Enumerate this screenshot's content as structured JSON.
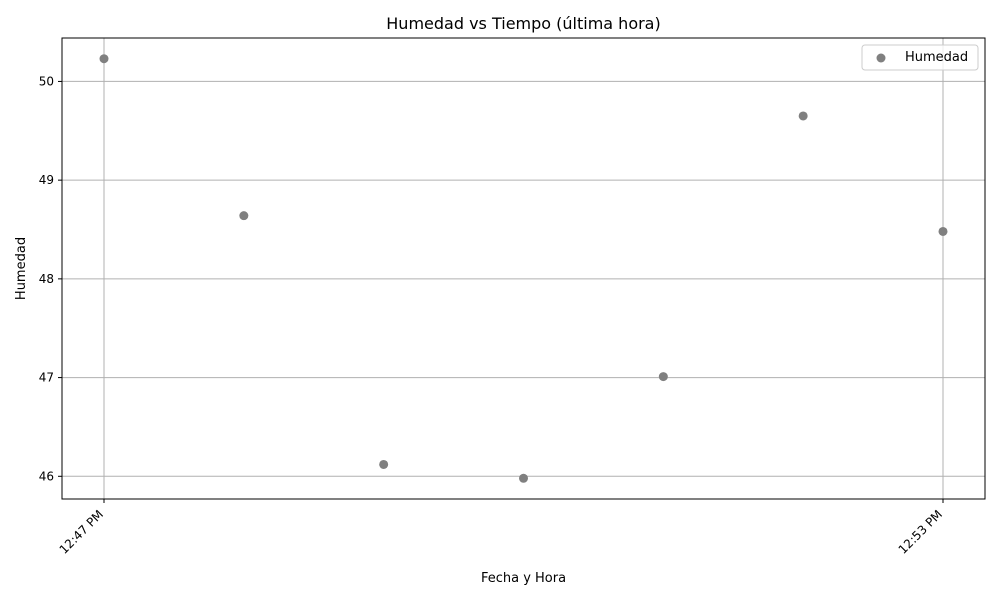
{
  "chart_data": {
    "type": "scatter",
    "title": "Humedad vs Tiempo (última hora)",
    "xlabel": "Fecha y Hora",
    "ylabel": "Humedad",
    "x": [
      "12:47 PM",
      "12:48 PM",
      "12:49 PM",
      "12:50 PM",
      "12:51 PM",
      "12:52 PM",
      "12:53 PM"
    ],
    "series": [
      {
        "name": "Humedad",
        "values": [
          50.23,
          48.64,
          46.12,
          45.98,
          47.01,
          49.65,
          48.48
        ]
      }
    ],
    "x_ticks": [
      "12:47 PM",
      "12:53 PM"
    ],
    "x_tick_indices": [
      0,
      6
    ],
    "y_ticks": [
      46,
      47,
      48,
      49,
      50
    ],
    "ylim": [
      45.77,
      50.44
    ],
    "grid": true,
    "legend_position": "top-right",
    "marker_color": "#808080",
    "grid_color": "#b0b0b0"
  }
}
